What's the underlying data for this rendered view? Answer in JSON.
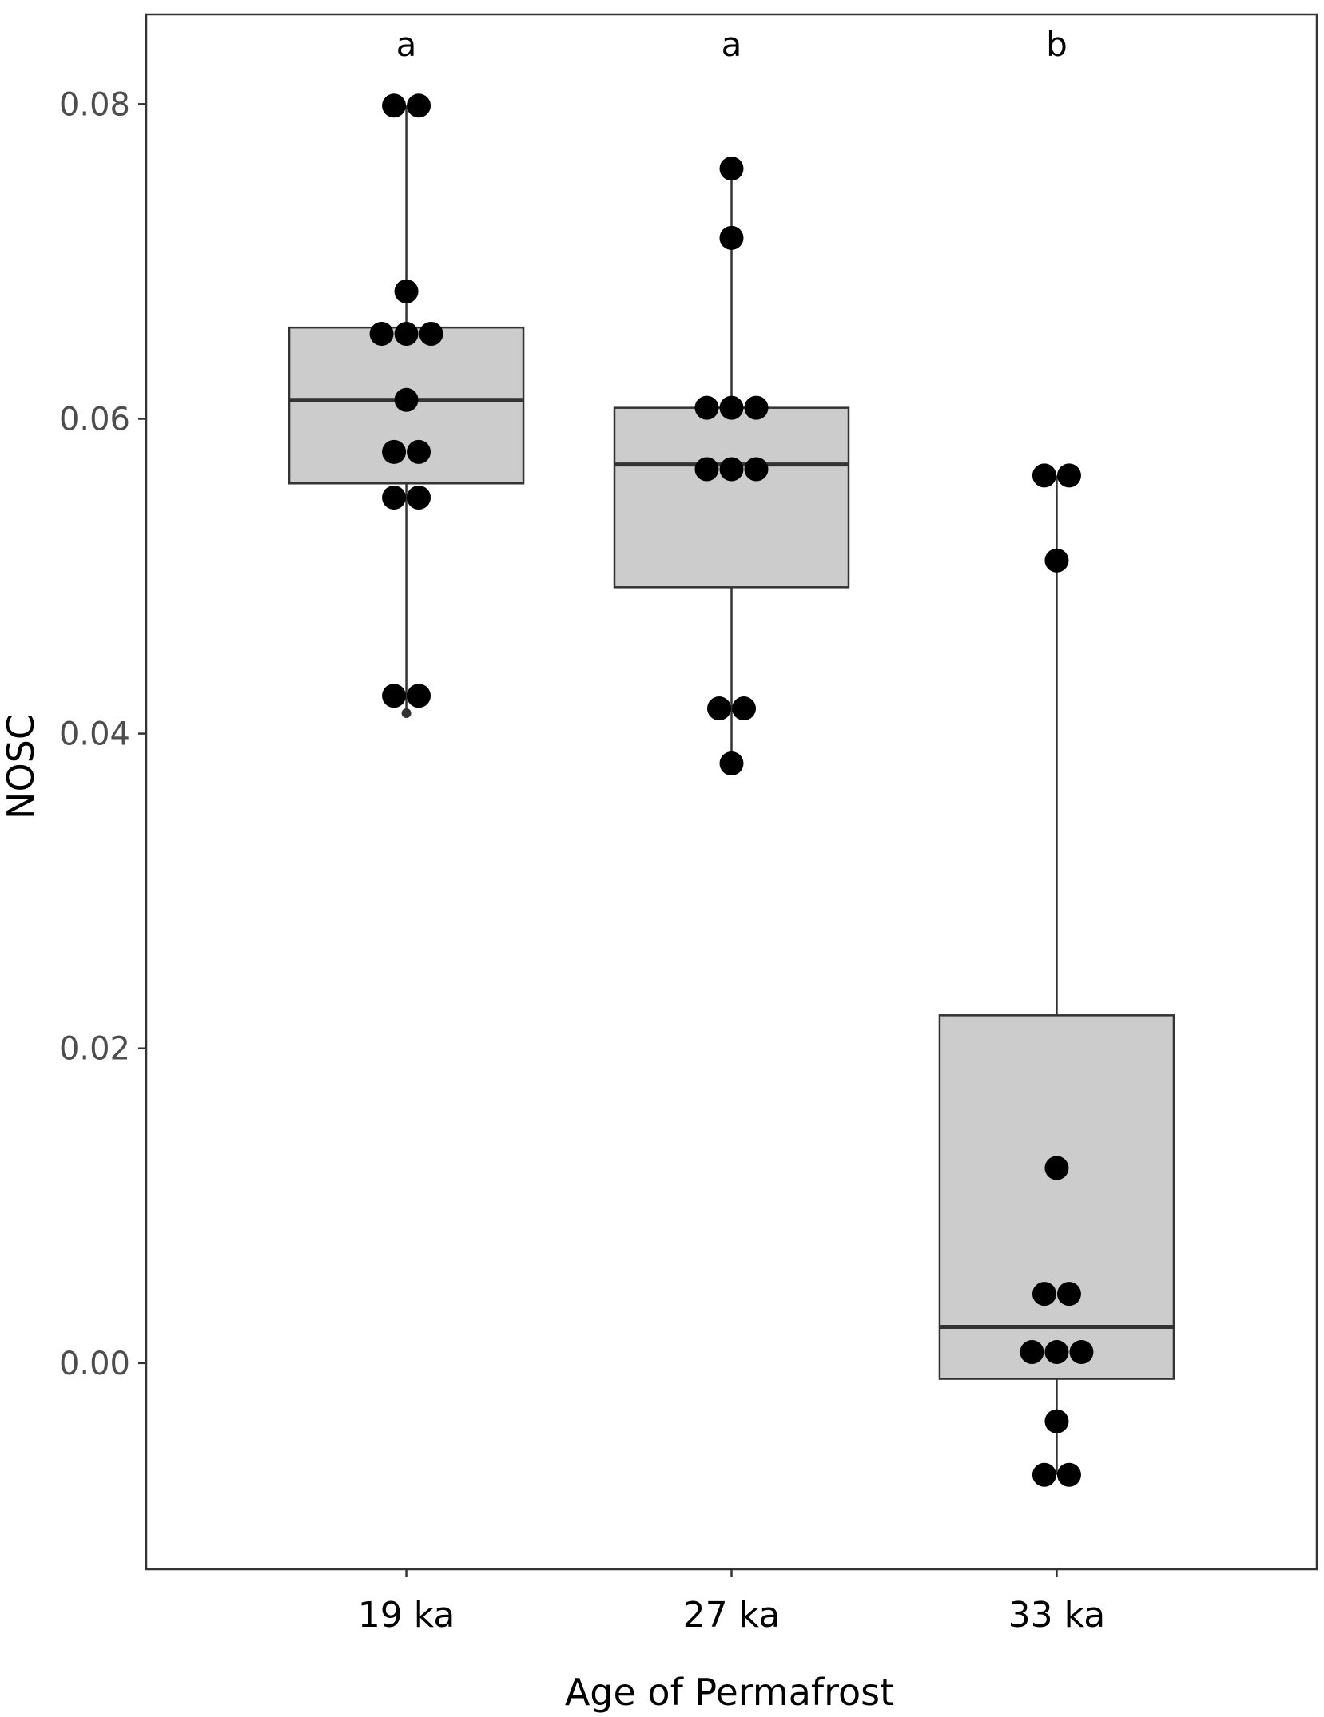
{
  "chart_data": {
    "type": "box",
    "title": "",
    "xlabel": "Age of Permafrost",
    "ylabel": "NOSC",
    "ylim": [
      -0.0131,
      0.0857
    ],
    "yticks": [
      0.0,
      0.02,
      0.04,
      0.06,
      0.08
    ],
    "ytick_labels": [
      "0.00",
      "0.02",
      "0.04",
      "0.06",
      "0.08"
    ],
    "grid": false,
    "legend": "none",
    "colors": {
      "box_fill": "#cccccc",
      "box_stroke": "#333333",
      "point": "#000000",
      "panel_border": "#333333"
    },
    "categories": [
      "19 ka",
      "27 ka",
      "33 ka"
    ],
    "group_letters": [
      "a",
      "a",
      "b"
    ],
    "boxes": [
      {
        "category": "19 ka",
        "whisker_low": 0.0413,
        "q1": 0.0559,
        "median": 0.0612,
        "q3": 0.0658,
        "whisker_high": 0.0799,
        "outliers": [
          0.0413
        ]
      },
      {
        "category": "27 ka",
        "whisker_low": 0.0381,
        "q1": 0.0493,
        "median": 0.0571,
        "q3": 0.0607,
        "whisker_high": 0.0759,
        "outliers": []
      },
      {
        "category": "33 ka",
        "whisker_low": -0.0071,
        "q1": -0.001,
        "median": 0.0023,
        "q3": 0.0221,
        "whisker_high": 0.0564,
        "outliers": []
      }
    ],
    "points": [
      {
        "category": "19 ka",
        "values": [
          0.0799,
          0.0799,
          0.0681,
          0.0654,
          0.0654,
          0.0654,
          0.0612,
          0.0579,
          0.0579,
          0.055,
          0.055,
          0.0424,
          0.0424
        ]
      },
      {
        "category": "27 ka",
        "values": [
          0.0759,
          0.0715,
          0.0607,
          0.0607,
          0.0607,
          0.0568,
          0.0568,
          0.0568,
          0.0416,
          0.0416,
          0.0381
        ]
      },
      {
        "category": "33 ka",
        "values": [
          0.0564,
          0.0564,
          0.051,
          0.0124,
          0.0044,
          0.0044,
          0.0007,
          0.0007,
          0.0007,
          -0.0037,
          -0.0071,
          -0.0071
        ]
      }
    ]
  }
}
